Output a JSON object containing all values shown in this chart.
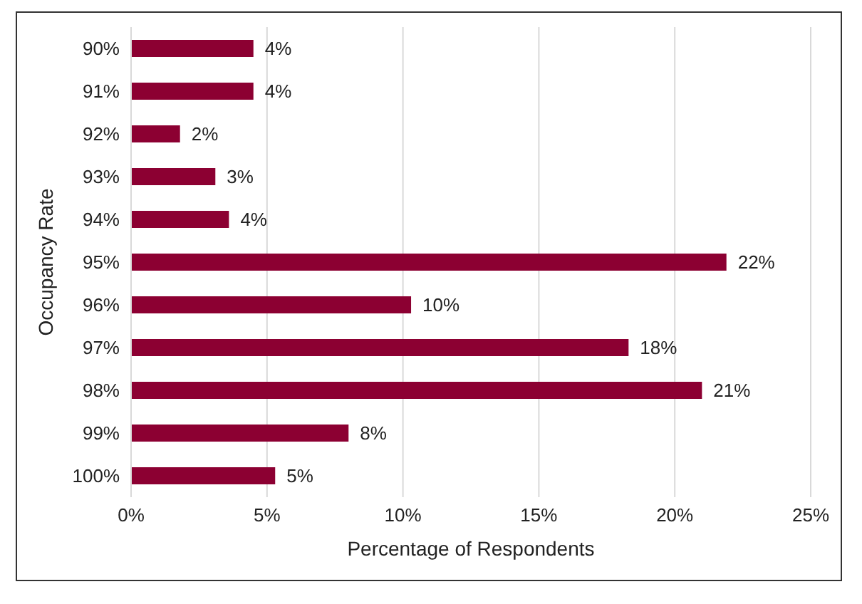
{
  "chart_data": {
    "type": "bar",
    "orientation": "horizontal",
    "xlabel": "Percentage of Respondents",
    "ylabel": "Occupancy Rate",
    "categories": [
      "90%",
      "91%",
      "92%",
      "93%",
      "94%",
      "95%",
      "96%",
      "97%",
      "98%",
      "99%",
      "100%"
    ],
    "values": [
      4.5,
      4.5,
      1.8,
      3.1,
      3.6,
      21.9,
      10.3,
      18.3,
      21.0,
      8.0,
      5.3
    ],
    "value_labels": [
      "4%",
      "4%",
      "2%",
      "3%",
      "4%",
      "22%",
      "10%",
      "18%",
      "21%",
      "8%",
      "5%"
    ],
    "color": "#8c0032",
    "xlim": [
      0,
      25
    ],
    "xticks": [
      {
        "value": 0,
        "label": "0%"
      },
      {
        "value": 5,
        "label": "5%"
      },
      {
        "value": 10,
        "label": "10%"
      },
      {
        "value": 15,
        "label": "15%"
      },
      {
        "value": 20,
        "label": "20%"
      },
      {
        "value": 25,
        "label": "25%"
      }
    ],
    "grid": "x"
  }
}
